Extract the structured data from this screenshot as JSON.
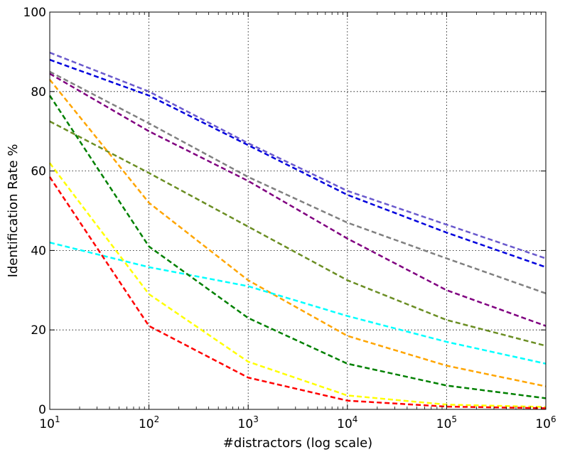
{
  "chart_data": {
    "type": "line",
    "xscale": "log",
    "xlabel": "#distractors (log scale)",
    "ylabel": "Identification Rate %",
    "xlim": [
      10,
      1000000
    ],
    "ylim": [
      0,
      100
    ],
    "grid": true,
    "line_style": "dashed",
    "x": [
      10,
      100,
      1000,
      10000,
      100000,
      1000000
    ],
    "x_tick_labels": [
      {
        "base": "10",
        "exp": "1"
      },
      {
        "base": "10",
        "exp": "2"
      },
      {
        "base": "10",
        "exp": "3"
      },
      {
        "base": "10",
        "exp": "4"
      },
      {
        "base": "10",
        "exp": "5"
      },
      {
        "base": "10",
        "exp": "6"
      }
    ],
    "y_ticks": [
      0,
      20,
      40,
      60,
      80,
      100
    ],
    "y_tick_labels": [
      "0",
      "20",
      "40",
      "60",
      "80",
      "100"
    ],
    "series": [
      {
        "color": "#6a5acd",
        "values": [
          89.8,
          80,
          67,
          55,
          46.5,
          38
        ]
      },
      {
        "color": "#0000dd",
        "values": [
          88,
          79,
          66.5,
          54,
          44.5,
          35.8
        ]
      },
      {
        "color": "#808080",
        "values": [
          85,
          72,
          58.5,
          47,
          38,
          29.2
        ]
      },
      {
        "color": "#800080",
        "values": [
          84.5,
          70,
          57.5,
          43,
          30,
          21
        ]
      },
      {
        "color": "#6b8e23",
        "values": [
          72.5,
          59.5,
          46,
          32.5,
          22.5,
          16
        ]
      },
      {
        "color": "#ffa500",
        "values": [
          83,
          52,
          32.5,
          18.5,
          11,
          5.8
        ]
      },
      {
        "color": "#00ffff",
        "values": [
          42,
          35.8,
          31,
          23.5,
          17,
          11.5
        ]
      },
      {
        "color": "#008000",
        "values": [
          79,
          41,
          23,
          11.5,
          6,
          2.8
        ]
      },
      {
        "color": "#ffff00",
        "values": [
          62,
          29,
          12,
          3.5,
          1.2,
          0.6
        ]
      },
      {
        "color": "#ff0000",
        "values": [
          58.5,
          21,
          8,
          2.2,
          0.7,
          0.3
        ]
      }
    ]
  }
}
